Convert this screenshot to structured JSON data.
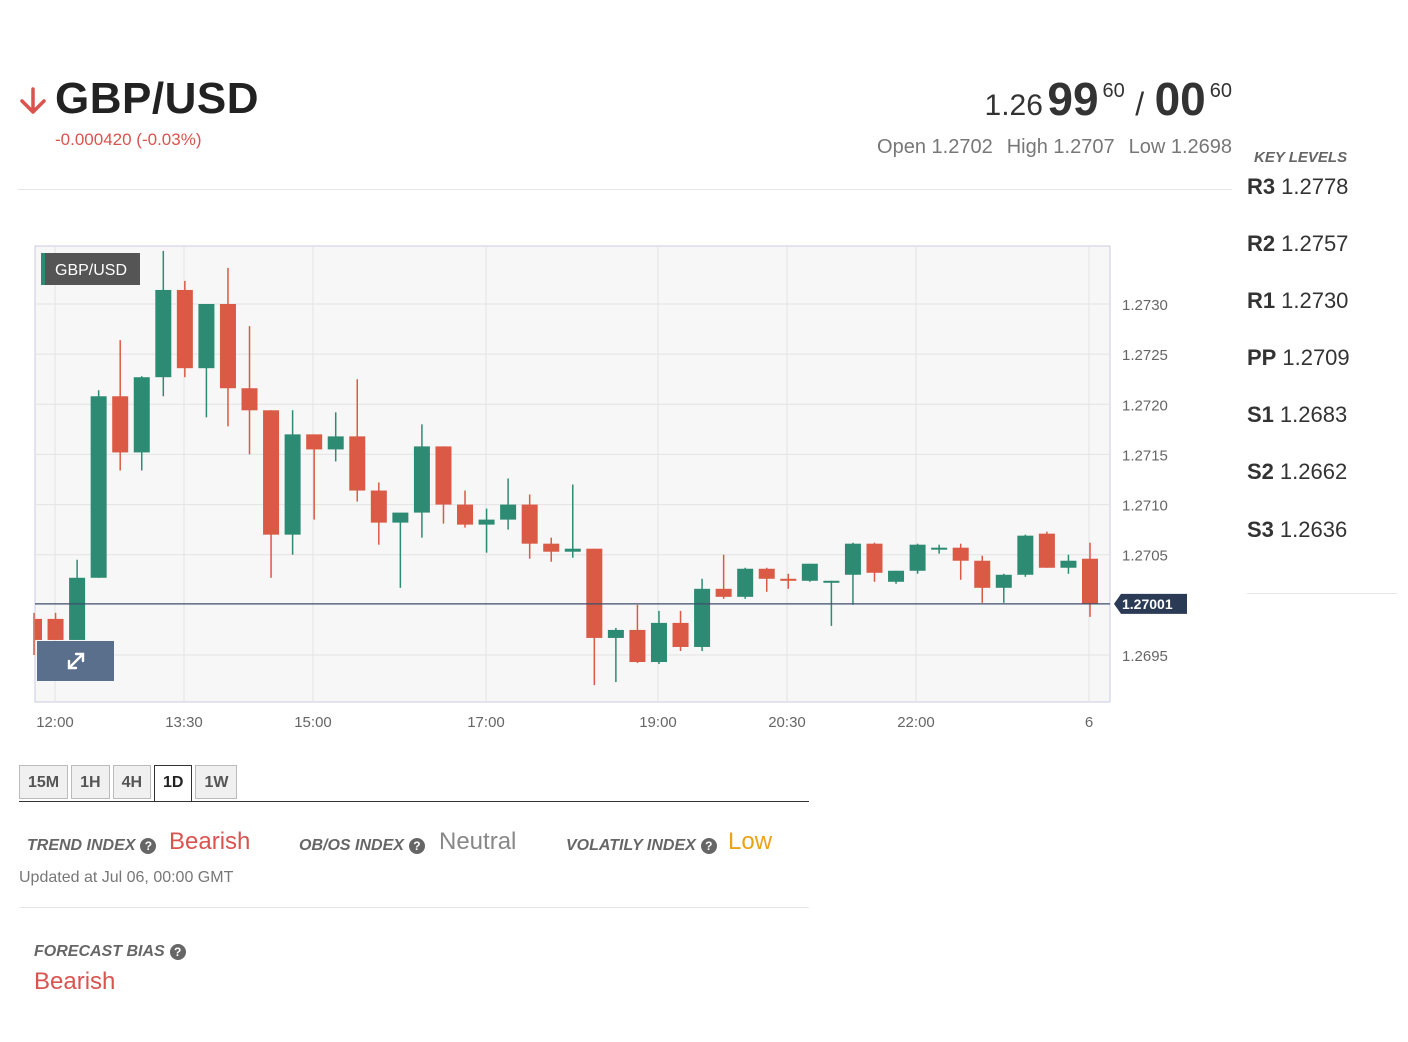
{
  "header": {
    "pair": "GBP/USD",
    "change": "-0.000420 (-0.03%)",
    "bid": {
      "prefix": "1.26",
      "big": "99",
      "sup": "60"
    },
    "ask": {
      "big": "00",
      "sup": "60"
    },
    "slash": "/",
    "open": "Open 1.2702",
    "high": "High 1.2707",
    "low": "Low 1.2698"
  },
  "key_levels": {
    "title": "KEY LEVELS",
    "items": [
      {
        "name": "R3",
        "value": "1.2778"
      },
      {
        "name": "R2",
        "value": "1.2757"
      },
      {
        "name": "R1",
        "value": "1.2730"
      },
      {
        "name": "PP",
        "value": "1.2709"
      },
      {
        "name": "S1",
        "value": "1.2683"
      },
      {
        "name": "S2",
        "value": "1.2662"
      },
      {
        "name": "S3",
        "value": "1.2636"
      }
    ]
  },
  "chart_data": {
    "type": "candlestick",
    "legend": "GBP/USD",
    "y_ticks": [
      "1.2730",
      "1.2725",
      "1.2720",
      "1.2715",
      "1.2710",
      "1.2705",
      "1.2695"
    ],
    "x_ticks": [
      "12:00",
      "13:30",
      "15:00",
      "17:00",
      "19:00",
      "20:30",
      "22:00",
      "6"
    ],
    "current_price": "1.27001",
    "candles": [
      {
        "o": 1.26986,
        "h": 1.26992,
        "l": 1.2695,
        "c": 1.26965
      },
      {
        "o": 1.26986,
        "h": 1.26992,
        "l": 1.26965,
        "c": 1.26965
      },
      {
        "o": 1.26965,
        "h": 1.27045,
        "l": 1.26965,
        "c": 1.27027
      },
      {
        "o": 1.27027,
        "h": 1.27214,
        "l": 1.27027,
        "c": 1.27208
      },
      {
        "o": 1.27208,
        "h": 1.27264,
        "l": 1.27134,
        "c": 1.27152
      },
      {
        "o": 1.27152,
        "h": 1.27228,
        "l": 1.27134,
        "c": 1.27227
      },
      {
        "o": 1.27227,
        "h": 1.27353,
        "l": 1.27208,
        "c": 1.27314
      },
      {
        "o": 1.27314,
        "h": 1.27323,
        "l": 1.27227,
        "c": 1.27236
      },
      {
        "o": 1.27236,
        "h": 1.273,
        "l": 1.27187,
        "c": 1.273
      },
      {
        "o": 1.273,
        "h": 1.27336,
        "l": 1.27178,
        "c": 1.27216
      },
      {
        "o": 1.27216,
        "h": 1.27278,
        "l": 1.2715,
        "c": 1.27194
      },
      {
        "o": 1.27194,
        "h": 1.27194,
        "l": 1.27027,
        "c": 1.2707
      },
      {
        "o": 1.2707,
        "h": 1.27194,
        "l": 1.2705,
        "c": 1.2717
      },
      {
        "o": 1.2717,
        "h": 1.2717,
        "l": 1.27085,
        "c": 1.27155
      },
      {
        "o": 1.27155,
        "h": 1.27192,
        "l": 1.27143,
        "c": 1.27168
      },
      {
        "o": 1.27168,
        "h": 1.27225,
        "l": 1.27103,
        "c": 1.27114
      },
      {
        "o": 1.27114,
        "h": 1.27122,
        "l": 1.2706,
        "c": 1.27082
      },
      {
        "o": 1.27082,
        "h": 1.27088,
        "l": 1.27017,
        "c": 1.27092
      },
      {
        "o": 1.27092,
        "h": 1.2718,
        "l": 1.27067,
        "c": 1.27158
      },
      {
        "o": 1.27158,
        "h": 1.27158,
        "l": 1.27081,
        "c": 1.271
      },
      {
        "o": 1.271,
        "h": 1.27114,
        "l": 1.27077,
        "c": 1.2708
      },
      {
        "o": 1.2708,
        "h": 1.27096,
        "l": 1.27052,
        "c": 1.27085
      },
      {
        "o": 1.27085,
        "h": 1.27126,
        "l": 1.27075,
        "c": 1.271
      },
      {
        "o": 1.271,
        "h": 1.2711,
        "l": 1.27046,
        "c": 1.27061
      },
      {
        "o": 1.27061,
        "h": 1.27067,
        "l": 1.27043,
        "c": 1.27053
      },
      {
        "o": 1.27053,
        "h": 1.2712,
        "l": 1.27047,
        "c": 1.27056
      },
      {
        "o": 1.27056,
        "h": 1.27056,
        "l": 1.2692,
        "c": 1.26967
      },
      {
        "o": 1.26967,
        "h": 1.26977,
        "l": 1.26923,
        "c": 1.26975
      },
      {
        "o": 1.26975,
        "h": 1.27,
        "l": 1.26942,
        "c": 1.26943
      },
      {
        "o": 1.26943,
        "h": 1.26994,
        "l": 1.26941,
        "c": 1.26982
      },
      {
        "o": 1.26982,
        "h": 1.26994,
        "l": 1.26954,
        "c": 1.26958
      },
      {
        "o": 1.26958,
        "h": 1.27026,
        "l": 1.26954,
        "c": 1.27016
      },
      {
        "o": 1.27016,
        "h": 1.2705,
        "l": 1.27006,
        "c": 1.27008
      },
      {
        "o": 1.27008,
        "h": 1.27037,
        "l": 1.27006,
        "c": 1.27036
      },
      {
        "o": 1.27036,
        "h": 1.27037,
        "l": 1.27013,
        "c": 1.27026
      },
      {
        "o": 1.27026,
        "h": 1.27031,
        "l": 1.27016,
        "c": 1.27024
      },
      {
        "o": 1.27024,
        "h": 1.27041,
        "l": 1.27023,
        "c": 1.27041
      },
      {
        "o": 1.27023,
        "h": 1.27024,
        "l": 1.26979,
        "c": 1.27024
      },
      {
        "o": 1.2703,
        "h": 1.27062,
        "l": 1.27,
        "c": 1.27061
      },
      {
        "o": 1.27061,
        "h": 1.27062,
        "l": 1.27023,
        "c": 1.27032
      },
      {
        "o": 1.27023,
        "h": 1.27034,
        "l": 1.27021,
        "c": 1.27034
      },
      {
        "o": 1.27034,
        "h": 1.27061,
        "l": 1.27031,
        "c": 1.2706
      },
      {
        "o": 1.27057,
        "h": 1.2706,
        "l": 1.27051,
        "c": 1.27057
      },
      {
        "o": 1.27057,
        "h": 1.27061,
        "l": 1.27025,
        "c": 1.27044
      },
      {
        "o": 1.27044,
        "h": 1.27049,
        "l": 1.27002,
        "c": 1.27017
      },
      {
        "o": 1.27017,
        "h": 1.27031,
        "l": 1.27002,
        "c": 1.2703
      },
      {
        "o": 1.2703,
        "h": 1.2707,
        "l": 1.27028,
        "c": 1.27069
      },
      {
        "o": 1.27071,
        "h": 1.27073,
        "l": 1.27037,
        "c": 1.27037
      },
      {
        "o": 1.27037,
        "h": 1.2705,
        "l": 1.27031,
        "c": 1.27044
      },
      {
        "o": 1.27046,
        "h": 1.27062,
        "l": 1.26988,
        "c": 1.27001
      }
    ]
  },
  "timeframes": [
    "15M",
    "1H",
    "4H",
    "1D",
    "1W"
  ],
  "active_timeframe": "1D",
  "indexes": {
    "trend_label": "TREND INDEX",
    "trend_value": "Bearish",
    "obos_label": "OB/OS INDEX",
    "obos_value": "Neutral",
    "volatility_label": "VOLATILY INDEX",
    "volatility_value": "Low",
    "updated": "Updated at Jul 06, 00:00 GMT"
  },
  "forecast": {
    "label": "FORECAST BIAS",
    "value": "Bearish"
  },
  "colors": {
    "up": "#2e8b73",
    "down": "#da5a45",
    "bearish": "#d9534f",
    "neutral": "#888888",
    "low": "#e8a317",
    "price_line": "#3d4f6c"
  }
}
